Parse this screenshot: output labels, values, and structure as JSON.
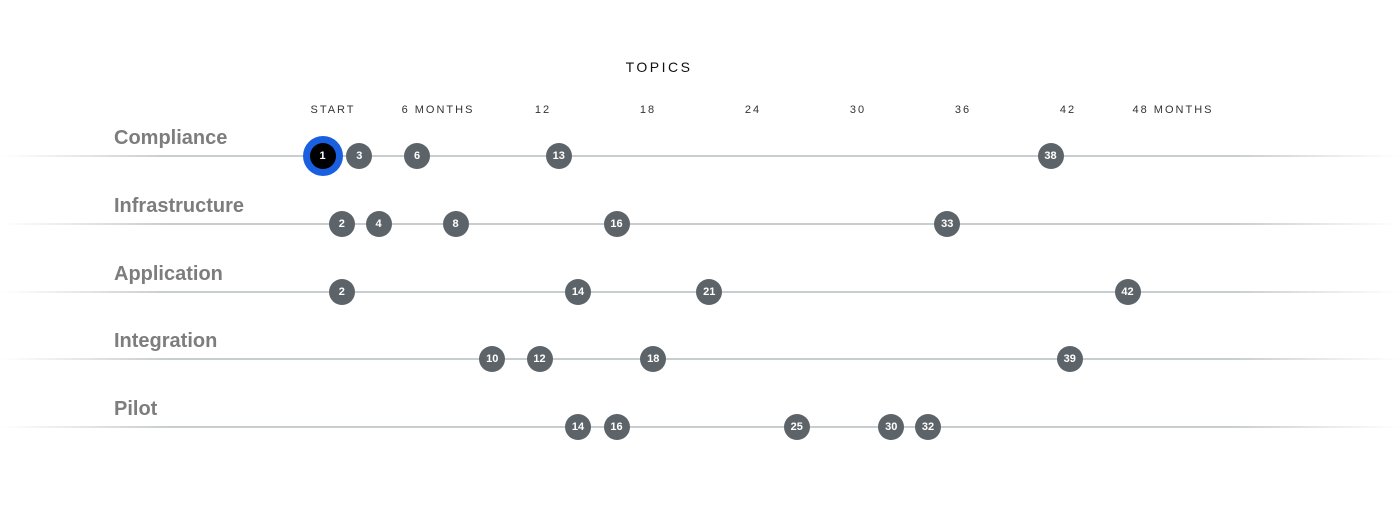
{
  "chart_data": {
    "type": "scatter",
    "title": "TOPICS",
    "x_ticks": [
      {
        "value": 0,
        "label": "START"
      },
      {
        "value": 6,
        "label": "6 MONTHS"
      },
      {
        "value": 12,
        "label": "12"
      },
      {
        "value": 18,
        "label": "18"
      },
      {
        "value": 24,
        "label": "24"
      },
      {
        "value": 30,
        "label": "30"
      },
      {
        "value": 36,
        "label": "36"
      },
      {
        "value": 42,
        "label": "42"
      },
      {
        "value": 48,
        "label": "48 MONTHS"
      }
    ],
    "xlim": [
      0,
      48
    ],
    "colors": {
      "dot": "#5d6469",
      "active_ring": "#1a5fe0",
      "active_fill": "#000000",
      "line": "#c8cdd0",
      "label": "#7d7d7d"
    },
    "rows": [
      {
        "name": "Compliance",
        "points": [
          {
            "label": "1",
            "month": -0.6,
            "active": true
          },
          {
            "label": "3",
            "month": 1.5
          },
          {
            "label": "6",
            "month": 4.8
          },
          {
            "label": "13",
            "month": 12.9
          },
          {
            "label": "38",
            "month": 41.0
          }
        ]
      },
      {
        "name": "Infrastructure",
        "points": [
          {
            "label": "2",
            "month": 0.5
          },
          {
            "label": "4",
            "month": 2.6
          },
          {
            "label": "8",
            "month": 7.0
          },
          {
            "label": "16",
            "month": 16.2
          },
          {
            "label": "33",
            "month": 35.1
          }
        ]
      },
      {
        "name": "Application",
        "points": [
          {
            "label": "2",
            "month": 0.5
          },
          {
            "label": "14",
            "month": 14.0
          },
          {
            "label": "21",
            "month": 21.5
          },
          {
            "label": "42",
            "month": 45.4
          }
        ]
      },
      {
        "name": "Integration",
        "points": [
          {
            "label": "10",
            "month": 9.1
          },
          {
            "label": "12",
            "month": 11.8
          },
          {
            "label": "18",
            "month": 18.3
          },
          {
            "label": "39",
            "month": 42.1
          }
        ]
      },
      {
        "name": "Pilot",
        "points": [
          {
            "label": "14",
            "month": 14.0
          },
          {
            "label": "16",
            "month": 16.2
          },
          {
            "label": "25",
            "month": 26.5
          },
          {
            "label": "30",
            "month": 31.9
          },
          {
            "label": "32",
            "month": 34.0
          }
        ]
      }
    ]
  }
}
